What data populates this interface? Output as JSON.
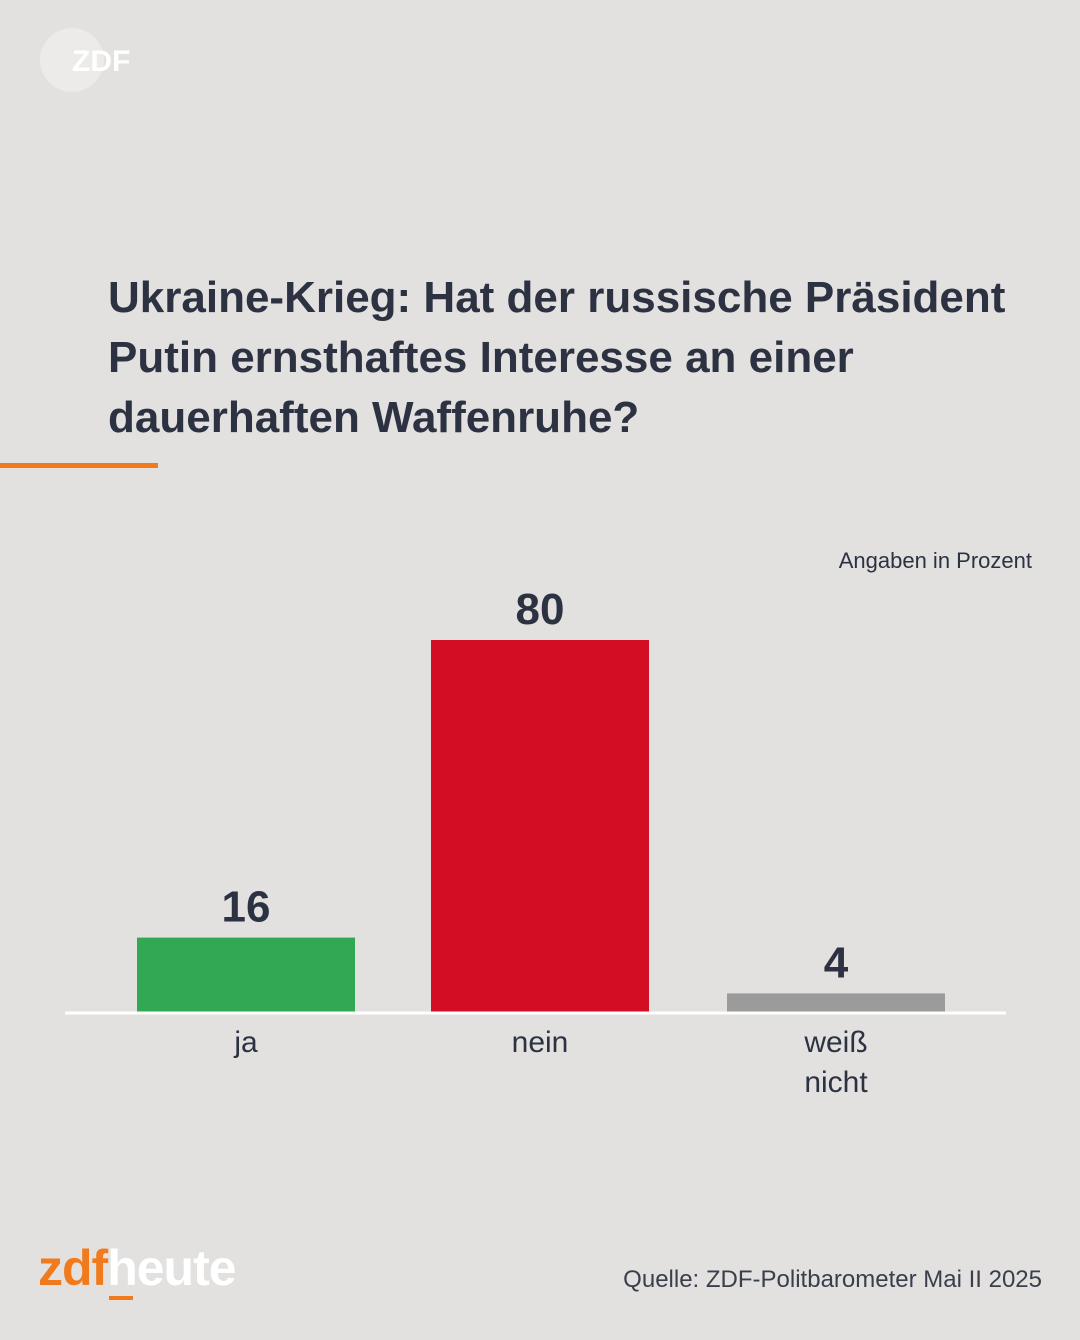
{
  "logo": {
    "name": "zdf-logo",
    "text": "ZDF"
  },
  "title": "Ukraine-Krieg: Hat der russische Präsident Putin ernsthaftes Interesse an einer dauerhaften Waffenruhe?",
  "unit_note": "Angaben in Prozent",
  "chart_data": {
    "type": "bar",
    "categories": [
      "ja",
      "nein",
      "weiß nicht"
    ],
    "values": [
      16,
      80,
      4
    ],
    "colors": [
      "#33a853",
      "#d20d24",
      "#9b9b9b"
    ],
    "ylim": [
      0,
      100
    ],
    "grid": false,
    "title": "",
    "xlabel": "",
    "ylabel": ""
  },
  "brand": {
    "part1": "zdf",
    "part2": "heute"
  },
  "source": "Quelle: ZDF-Politbarometer Mai II 2025",
  "colors": {
    "accent": "#f07a1c",
    "background": "#e2e1df",
    "text": "#2c3241"
  }
}
